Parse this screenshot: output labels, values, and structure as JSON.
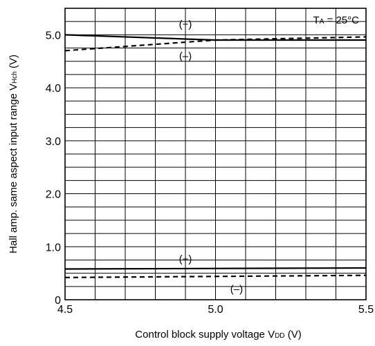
{
  "chart_data": {
    "type": "line",
    "xlabel": "Control block supply voltage V",
    "xlabel_sub": "DD",
    "xlabel_unit": " (V)",
    "ylabel": "Hall amp.  same aspect input range V",
    "ylabel_sub": "Hch",
    "ylabel_unit": " (V)",
    "xlim": [
      4.5,
      5.5
    ],
    "ylim": [
      0,
      5.5
    ],
    "x_minor_step": 0.1,
    "y_minor_step": 0.25,
    "grid": true,
    "x_ticks": [
      {
        "value": 4.5,
        "label": "4.5"
      },
      {
        "value": 5.0,
        "label": "5.0"
      },
      {
        "value": 5.5,
        "label": "5.5"
      }
    ],
    "y_ticks": [
      {
        "value": 0,
        "label": "0"
      },
      {
        "value": 1.0,
        "label": "1.0"
      },
      {
        "value": 2.0,
        "label": "2.0"
      },
      {
        "value": 3.0,
        "label": "3.0"
      },
      {
        "value": 4.0,
        "label": "4.0"
      },
      {
        "value": 5.0,
        "label": "5.0"
      }
    ],
    "series": [
      {
        "style": "solid",
        "x": [
          4.5,
          5.0,
          5.5
        ],
        "y": [
          5.0,
          4.9,
          4.9
        ]
      },
      {
        "style": "dashed",
        "x": [
          4.5,
          5.0,
          5.5
        ],
        "y": [
          4.7,
          4.9,
          4.96
        ]
      },
      {
        "style": "solid",
        "x": [
          4.5,
          5.5
        ],
        "y": [
          0.58,
          0.6
        ]
      },
      {
        "style": "dashed",
        "x": [
          4.5,
          5.5
        ],
        "y": [
          0.42,
          0.46
        ]
      }
    ],
    "annotations": [
      {
        "text": "(+)",
        "x": 4.9,
        "y": 5.2
      },
      {
        "text": "(–)",
        "x": 4.9,
        "y": 4.6
      },
      {
        "text": "(+)",
        "x": 4.9,
        "y": 0.77
      },
      {
        "text": "(–)",
        "x": 5.07,
        "y": 0.2
      }
    ],
    "condition": {
      "text_main": "T",
      "text_sub": "A",
      "text_rest": " = 25°C"
    }
  }
}
